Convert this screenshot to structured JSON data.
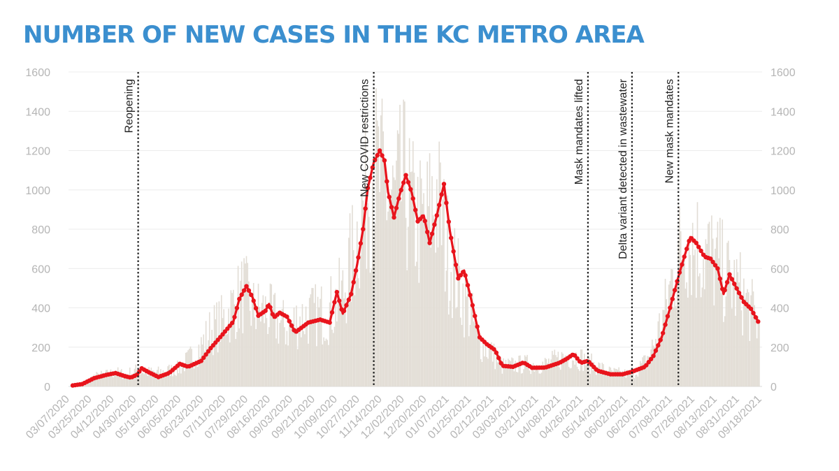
{
  "title": "NUMBER OF NEW CASES IN THE KC METRO AREA",
  "chart_data": {
    "type": "bar",
    "title": "NUMBER OF NEW CASES IN THE KC METRO AREA",
    "xlabel": "",
    "ylabel": "",
    "ylim": [
      0,
      1600
    ],
    "yticks": [
      0,
      200,
      400,
      600,
      800,
      1000,
      1200,
      1400,
      1600
    ],
    "grid": true,
    "x_start": "03/07/2020",
    "x_end": "10/05/2021",
    "xticks": [
      "03/07/2020",
      "03/25/2020",
      "04/12/2020",
      "04/30/2020",
      "05/18/2020",
      "06/05/2020",
      "06/23/2020",
      "07/11/2020",
      "07/29/2020",
      "08/16/2020",
      "09/03/2020",
      "09/21/2020",
      "10/09/2020",
      "10/27/2020",
      "11/14/2020",
      "12/02/2020",
      "12/20/2020",
      "01/07/2021",
      "01/25/2021",
      "02/12/2021",
      "03/03/2021",
      "03/21/2021",
      "04/08/2021",
      "04/26/2021",
      "05/14/2021",
      "06/02/2021",
      "06/20/2021",
      "07/08/2021",
      "07/26/2021",
      "08/13/2021",
      "08/31/2021",
      "09/18/2021"
    ],
    "bars_color": "#e2ddd5",
    "line_color": "#e8141c",
    "series": [
      {
        "kind": "daily_cases_bars",
        "points": [
          [
            "03/07/2020",
            0
          ],
          [
            "03/20/2020",
            30
          ],
          [
            "03/25/2020",
            50
          ],
          [
            "04/05/2020",
            60
          ],
          [
            "04/12/2020",
            70
          ],
          [
            "04/20/2020",
            60
          ],
          [
            "04/30/2020",
            80
          ],
          [
            "05/08/2020",
            70
          ],
          [
            "05/18/2020",
            70
          ],
          [
            "06/05/2020",
            90
          ],
          [
            "06/15/2020",
            150
          ],
          [
            "06/23/2020",
            200
          ],
          [
            "07/01/2020",
            280
          ],
          [
            "07/11/2020",
            320
          ],
          [
            "07/20/2020",
            400
          ],
          [
            "07/29/2020",
            470
          ],
          [
            "08/05/2020",
            380
          ],
          [
            "08/16/2020",
            370
          ],
          [
            "08/25/2020",
            330
          ],
          [
            "09/03/2020",
            290
          ],
          [
            "09/12/2020",
            330
          ],
          [
            "09/21/2020",
            350
          ],
          [
            "10/01/2020",
            360
          ],
          [
            "10/09/2020",
            380
          ],
          [
            "10/20/2020",
            460
          ],
          [
            "10/27/2020",
            620
          ],
          [
            "11/05/2020",
            850
          ],
          [
            "11/14/2020",
            1100
          ],
          [
            "11/22/2020",
            1000
          ],
          [
            "12/02/2020",
            900
          ],
          [
            "12/10/2020",
            1000
          ],
          [
            "12/20/2020",
            820
          ],
          [
            "12/28/2020",
            800
          ],
          [
            "01/07/2021",
            950
          ],
          [
            "01/15/2021",
            700
          ],
          [
            "01/25/2021",
            520
          ],
          [
            "02/03/2021",
            380
          ],
          [
            "02/12/2021",
            220
          ],
          [
            "02/22/2021",
            170
          ],
          [
            "03/03/2021",
            100
          ],
          [
            "03/21/2021",
            110
          ],
          [
            "04/08/2021",
            110
          ],
          [
            "04/26/2021",
            150
          ],
          [
            "05/05/2021",
            150
          ],
          [
            "05/14/2021",
            120
          ],
          [
            "06/02/2021",
            70
          ],
          [
            "06/20/2021",
            60
          ],
          [
            "07/01/2021",
            120
          ],
          [
            "07/08/2021",
            200
          ],
          [
            "07/18/2021",
            380
          ],
          [
            "07/26/2021",
            600
          ],
          [
            "08/05/2021",
            760
          ],
          [
            "08/13/2021",
            700
          ],
          [
            "08/22/2021",
            660
          ],
          [
            "08/31/2021",
            600
          ],
          [
            "09/10/2021",
            520
          ],
          [
            "09/18/2021",
            480
          ],
          [
            "09/28/2021",
            380
          ],
          [
            "10/05/2021",
            300
          ]
        ]
      },
      {
        "kind": "rolling_average_line",
        "points": [
          [
            "03/07/2020",
            5
          ],
          [
            "03/15/2020",
            12
          ],
          [
            "03/25/2020",
            42
          ],
          [
            "04/05/2020",
            60
          ],
          [
            "04/12/2020",
            68
          ],
          [
            "04/20/2020",
            52
          ],
          [
            "04/25/2020",
            45
          ],
          [
            "04/30/2020",
            60
          ],
          [
            "05/04/2020",
            92
          ],
          [
            "05/10/2020",
            72
          ],
          [
            "05/18/2020",
            48
          ],
          [
            "05/27/2020",
            68
          ],
          [
            "06/05/2020",
            115
          ],
          [
            "06/12/2020",
            100
          ],
          [
            "06/23/2020",
            130
          ],
          [
            "07/01/2020",
            195
          ],
          [
            "07/11/2020",
            265
          ],
          [
            "07/20/2020",
            330
          ],
          [
            "07/25/2020",
            445
          ],
          [
            "07/31/2020",
            510
          ],
          [
            "08/05/2020",
            455
          ],
          [
            "08/10/2020",
            360
          ],
          [
            "08/16/2020",
            385
          ],
          [
            "08/19/2020",
            420
          ],
          [
            "08/23/2020",
            350
          ],
          [
            "08/28/2020",
            375
          ],
          [
            "09/03/2020",
            355
          ],
          [
            "09/10/2020",
            275
          ],
          [
            "09/21/2020",
            325
          ],
          [
            "10/01/2020",
            340
          ],
          [
            "10/09/2020",
            325
          ],
          [
            "10/15/2020",
            480
          ],
          [
            "10/20/2020",
            370
          ],
          [
            "10/27/2020",
            470
          ],
          [
            "11/01/2020",
            620
          ],
          [
            "11/06/2020",
            800
          ],
          [
            "11/10/2020",
            1010
          ],
          [
            "11/15/2020",
            1140
          ],
          [
            "11/20/2020",
            1200
          ],
          [
            "11/24/2020",
            1150
          ],
          [
            "11/27/2020",
            990
          ],
          [
            "12/02/2020",
            860
          ],
          [
            "12/07/2020",
            980
          ],
          [
            "12/12/2020",
            1075
          ],
          [
            "12/17/2020",
            985
          ],
          [
            "12/22/2020",
            840
          ],
          [
            "12/27/2020",
            870
          ],
          [
            "01/01/2021",
            730
          ],
          [
            "01/07/2021",
            870
          ],
          [
            "01/13/2021",
            1030
          ],
          [
            "01/18/2021",
            790
          ],
          [
            "01/25/2021",
            550
          ],
          [
            "01/30/2021",
            590
          ],
          [
            "02/05/2021",
            440
          ],
          [
            "02/12/2021",
            250
          ],
          [
            "02/18/2021",
            215
          ],
          [
            "02/25/2021",
            185
          ],
          [
            "03/03/2021",
            105
          ],
          [
            "03/12/2021",
            100
          ],
          [
            "03/21/2021",
            122
          ],
          [
            "03/28/2021",
            95
          ],
          [
            "04/08/2021",
            96
          ],
          [
            "04/20/2021",
            120
          ],
          [
            "04/26/2021",
            140
          ],
          [
            "05/02/2021",
            165
          ],
          [
            "05/08/2021",
            120
          ],
          [
            "05/14/2021",
            130
          ],
          [
            "05/22/2021",
            80
          ],
          [
            "06/02/2021",
            62
          ],
          [
            "06/12/2021",
            62
          ],
          [
            "06/20/2021",
            75
          ],
          [
            "07/01/2021",
            100
          ],
          [
            "07/08/2021",
            155
          ],
          [
            "07/15/2021",
            250
          ],
          [
            "07/22/2021",
            400
          ],
          [
            "07/30/2021",
            580
          ],
          [
            "08/05/2021",
            700
          ],
          [
            "08/08/2021",
            760
          ],
          [
            "08/13/2021",
            730
          ],
          [
            "08/20/2021",
            660
          ],
          [
            "08/25/2021",
            650
          ],
          [
            "08/31/2021",
            600
          ],
          [
            "09/05/2021",
            470
          ],
          [
            "09/10/2021",
            570
          ],
          [
            "09/15/2021",
            510
          ],
          [
            "09/22/2021",
            430
          ],
          [
            "09/28/2021",
            395
          ],
          [
            "10/04/2021",
            330
          ]
        ]
      }
    ],
    "annotations": [
      {
        "label": "Reopening",
        "date": "05/01/2020"
      },
      {
        "label": "New COVID restrictions",
        "date": "11/15/2020"
      },
      {
        "label": "Mask mandates lifted",
        "date": "05/14/2021"
      },
      {
        "label": "Delta variant detected in wastewater",
        "date": "06/20/2021"
      },
      {
        "label": "New mask mandates",
        "date": "07/29/2021"
      }
    ]
  }
}
